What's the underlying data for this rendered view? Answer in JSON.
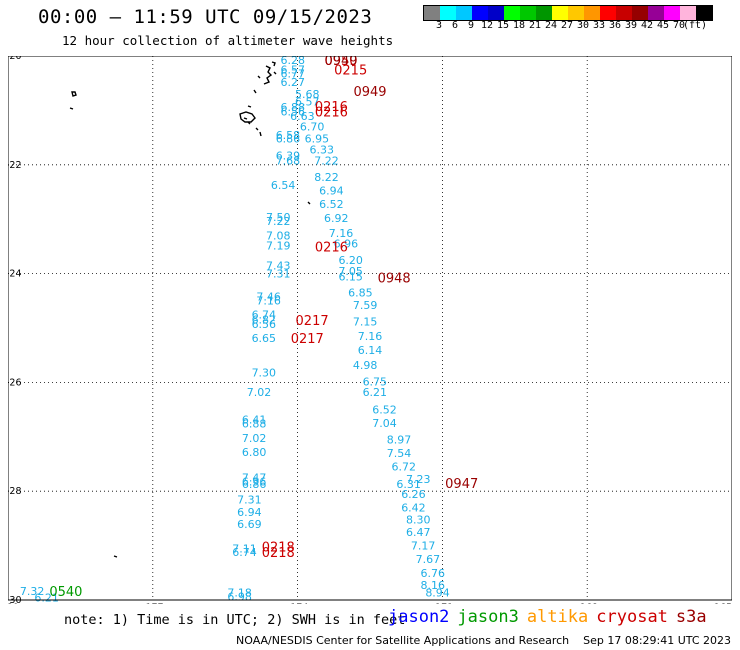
{
  "title": "00:00 – 11:59 UTC 09/15/2023",
  "subtitle": "12 hour collection of altimeter wave heights",
  "color_scale": {
    "colors": [
      "#808080",
      "#00ffff",
      "#00c8ff",
      "#0000ff",
      "#0000c8",
      "#00ff00",
      "#00c800",
      "#009600",
      "#ffff00",
      "#ffc800",
      "#ff9600",
      "#ff0000",
      "#c80000",
      "#960000",
      "#960096",
      "#ff00ff",
      "#ffb4dc",
      "#000000"
    ],
    "tick_labels": [
      "3",
      "6",
      "9",
      "12",
      "15",
      "18",
      "21",
      "24",
      "27",
      "30",
      "33",
      "36",
      "39",
      "42",
      "45",
      "70",
      "(ft)"
    ]
  },
  "note": "note: 1) Time is in UTC; 2) SWH is in feet",
  "satellites": [
    {
      "name": "jason2",
      "color": "#0000ff"
    },
    {
      "name": "jason3",
      "color": "#009900"
    },
    {
      "name": "altika",
      "color": "#ff9900"
    },
    {
      "name": "cryosat",
      "color": "#cc0000"
    },
    {
      "name": "s3a",
      "color": "#990000"
    }
  ],
  "footer": "NOAA/NESDIS Center for Satellite Applications and Research    Sep 17 08:29:41 UTC 2023",
  "chart_data": {
    "type": "scatter",
    "title": "00:00 – 11:59 UTC 09/15/2023",
    "subtitle": "12 hour collection of altimeter wave heights",
    "xlim": [
      -180,
      -165
    ],
    "ylim": [
      -30,
      -20
    ],
    "x_ticks": [
      "-180",
      "-177",
      "-174",
      "-171",
      "-168",
      "-165"
    ],
    "y_ticks": [
      "-20",
      "-22",
      "-24",
      "-26",
      "-28",
      "-30"
    ],
    "grid": true,
    "swh_color": "#1eaee6",
    "time_color": "#cc0000",
    "swh_points": [
      {
        "lon": -174.1,
        "lat": -20.07,
        "v": "6.28"
      },
      {
        "lon": -174.1,
        "lat": -20.25,
        "v": "6.57"
      },
      {
        "lon": -174.1,
        "lat": -20.32,
        "v": "6.77"
      },
      {
        "lon": -174.1,
        "lat": -20.48,
        "v": "6.27"
      },
      {
        "lon": -173.8,
        "lat": -20.7,
        "v": "5.68"
      },
      {
        "lon": -173.8,
        "lat": -20.84,
        "v": "6.57"
      },
      {
        "lon": -174.1,
        "lat": -20.94,
        "v": "6.88"
      },
      {
        "lon": -174.1,
        "lat": -21.02,
        "v": "6.56"
      },
      {
        "lon": -173.9,
        "lat": -21.1,
        "v": "6.63"
      },
      {
        "lon": -173.7,
        "lat": -21.3,
        "v": "6.70"
      },
      {
        "lon": -174.2,
        "lat": -21.45,
        "v": "6.58"
      },
      {
        "lon": -174.2,
        "lat": -21.52,
        "v": "6.86"
      },
      {
        "lon": -173.6,
        "lat": -21.52,
        "v": "6.95"
      },
      {
        "lon": -173.5,
        "lat": -21.72,
        "v": "6.33"
      },
      {
        "lon": -174.2,
        "lat": -21.83,
        "v": "6.39"
      },
      {
        "lon": -174.2,
        "lat": -21.92,
        "v": "7.68"
      },
      {
        "lon": -173.4,
        "lat": -21.92,
        "v": "7.22"
      },
      {
        "lon": -173.4,
        "lat": -22.22,
        "v": "8.22"
      },
      {
        "lon": -174.3,
        "lat": -22.37,
        "v": "6.54"
      },
      {
        "lon": -173.3,
        "lat": -22.47,
        "v": "6.94"
      },
      {
        "lon": -173.3,
        "lat": -22.72,
        "v": "6.52"
      },
      {
        "lon": -174.4,
        "lat": -22.96,
        "v": "7.50"
      },
      {
        "lon": -174.4,
        "lat": -23.03,
        "v": "7.22"
      },
      {
        "lon": -173.2,
        "lat": -22.98,
        "v": "6.92"
      },
      {
        "lon": -173.1,
        "lat": -23.25,
        "v": "7.16"
      },
      {
        "lon": -174.4,
        "lat": -23.3,
        "v": "7.08"
      },
      {
        "lon": -173.0,
        "lat": -23.45,
        "v": "6.96"
      },
      {
        "lon": -174.4,
        "lat": -23.48,
        "v": "7.19"
      },
      {
        "lon": -172.9,
        "lat": -23.75,
        "v": "6.20"
      },
      {
        "lon": -174.4,
        "lat": -23.85,
        "v": "7.43"
      },
      {
        "lon": -172.9,
        "lat": -23.95,
        "v": "7.05"
      },
      {
        "lon": -174.4,
        "lat": -24.0,
        "v": "7.31"
      },
      {
        "lon": -172.9,
        "lat": -24.05,
        "v": "6.15"
      },
      {
        "lon": -172.7,
        "lat": -24.35,
        "v": "6.85"
      },
      {
        "lon": -174.6,
        "lat": -24.42,
        "v": "7.46"
      },
      {
        "lon": -174.6,
        "lat": -24.49,
        "v": "7.16"
      },
      {
        "lon": -172.6,
        "lat": -24.58,
        "v": "7.59"
      },
      {
        "lon": -174.7,
        "lat": -24.75,
        "v": "6.74"
      },
      {
        "lon": -174.7,
        "lat": -24.84,
        "v": "6.82"
      },
      {
        "lon": -172.6,
        "lat": -24.88,
        "v": "7.15"
      },
      {
        "lon": -174.7,
        "lat": -24.93,
        "v": "6.56"
      },
      {
        "lon": -172.5,
        "lat": -25.15,
        "v": "7.16"
      },
      {
        "lon": -174.7,
        "lat": -25.18,
        "v": "6.65"
      },
      {
        "lon": -172.5,
        "lat": -25.4,
        "v": "6.14"
      },
      {
        "lon": -172.6,
        "lat": -25.68,
        "v": "4.98"
      },
      {
        "lon": -174.7,
        "lat": -25.82,
        "v": "7.30"
      },
      {
        "lon": -172.4,
        "lat": -25.98,
        "v": "6.75"
      },
      {
        "lon": -174.8,
        "lat": -26.18,
        "v": "7.02"
      },
      {
        "lon": -172.4,
        "lat": -26.18,
        "v": "6.21"
      },
      {
        "lon": -172.2,
        "lat": -26.5,
        "v": "6.52"
      },
      {
        "lon": -174.9,
        "lat": -26.68,
        "v": "6.41"
      },
      {
        "lon": -172.2,
        "lat": -26.75,
        "v": "7.04"
      },
      {
        "lon": -174.9,
        "lat": -26.76,
        "v": "6.88"
      },
      {
        "lon": -174.9,
        "lat": -27.02,
        "v": "7.02"
      },
      {
        "lon": -171.9,
        "lat": -27.05,
        "v": "8.97"
      },
      {
        "lon": -174.9,
        "lat": -27.28,
        "v": "6.80"
      },
      {
        "lon": -171.9,
        "lat": -27.3,
        "v": "7.54"
      },
      {
        "lon": -171.8,
        "lat": -27.55,
        "v": "6.72"
      },
      {
        "lon": -174.9,
        "lat": -27.75,
        "v": "7.47"
      },
      {
        "lon": -174.9,
        "lat": -27.82,
        "v": "6.96"
      },
      {
        "lon": -174.9,
        "lat": -27.87,
        "v": "6.86"
      },
      {
        "lon": -171.5,
        "lat": -27.78,
        "v": "7.23"
      },
      {
        "lon": -171.7,
        "lat": -27.87,
        "v": "6.31"
      },
      {
        "lon": -171.6,
        "lat": -28.05,
        "v": "6.26"
      },
      {
        "lon": -175.0,
        "lat": -28.15,
        "v": "7.31"
      },
      {
        "lon": -171.6,
        "lat": -28.3,
        "v": "6.42"
      },
      {
        "lon": -175.0,
        "lat": -28.38,
        "v": "6.94"
      },
      {
        "lon": -171.5,
        "lat": -28.52,
        "v": "8.30"
      },
      {
        "lon": -175.0,
        "lat": -28.6,
        "v": "6.69"
      },
      {
        "lon": -171.5,
        "lat": -28.75,
        "v": "6.47"
      },
      {
        "lon": -175.1,
        "lat": -29.05,
        "v": "7.11"
      },
      {
        "lon": -171.4,
        "lat": -29.0,
        "v": "7.17"
      },
      {
        "lon": -175.1,
        "lat": -29.12,
        "v": "6.74"
      },
      {
        "lon": -171.3,
        "lat": -29.25,
        "v": "7.67"
      },
      {
        "lon": -171.2,
        "lat": -29.5,
        "v": "6.76"
      },
      {
        "lon": -171.2,
        "lat": -29.72,
        "v": "8.16"
      },
      {
        "lon": -179.5,
        "lat": -29.83,
        "v": "7.32"
      },
      {
        "lon": -175.2,
        "lat": -29.86,
        "v": "7.18"
      },
      {
        "lon": -171.1,
        "lat": -29.86,
        "v": "8.94"
      },
      {
        "lon": -175.2,
        "lat": -29.94,
        "v": "6.98"
      },
      {
        "lon": -179.2,
        "lat": -29.95,
        "v": "6.21"
      }
    ],
    "time_labels": [
      {
        "lon": -173.1,
        "lat": -20.07,
        "t": "0950",
        "c": "#cc0000"
      },
      {
        "lon": -173.1,
        "lat": -20.07,
        "t": "0949",
        "c": "#990000"
      },
      {
        "lon": -172.9,
        "lat": -20.25,
        "t": "0215",
        "c": "#cc0000"
      },
      {
        "lon": -172.5,
        "lat": -20.64,
        "t": "0949",
        "c": "#990000"
      },
      {
        "lon": -173.3,
        "lat": -20.92,
        "t": "0216",
        "c": "#cc0000"
      },
      {
        "lon": -173.3,
        "lat": -21.02,
        "t": "0216",
        "c": "#cc0000"
      },
      {
        "lon": -173.3,
        "lat": -23.5,
        "t": "0216",
        "c": "#cc0000"
      },
      {
        "lon": -172.0,
        "lat": -24.07,
        "t": "0948",
        "c": "#990000"
      },
      {
        "lon": -173.7,
        "lat": -24.85,
        "t": "0217",
        "c": "#cc0000"
      },
      {
        "lon": -173.8,
        "lat": -25.18,
        "t": "0217",
        "c": "#cc0000"
      },
      {
        "lon": -170.6,
        "lat": -27.85,
        "t": "0947",
        "c": "#990000"
      },
      {
        "lon": -174.4,
        "lat": -29.02,
        "t": "0218",
        "c": "#cc0000"
      },
      {
        "lon": -174.4,
        "lat": -29.12,
        "t": "0218",
        "c": "#cc0000"
      },
      {
        "lon": -178.8,
        "lat": -29.83,
        "t": "0540",
        "c": "#009900"
      }
    ]
  }
}
